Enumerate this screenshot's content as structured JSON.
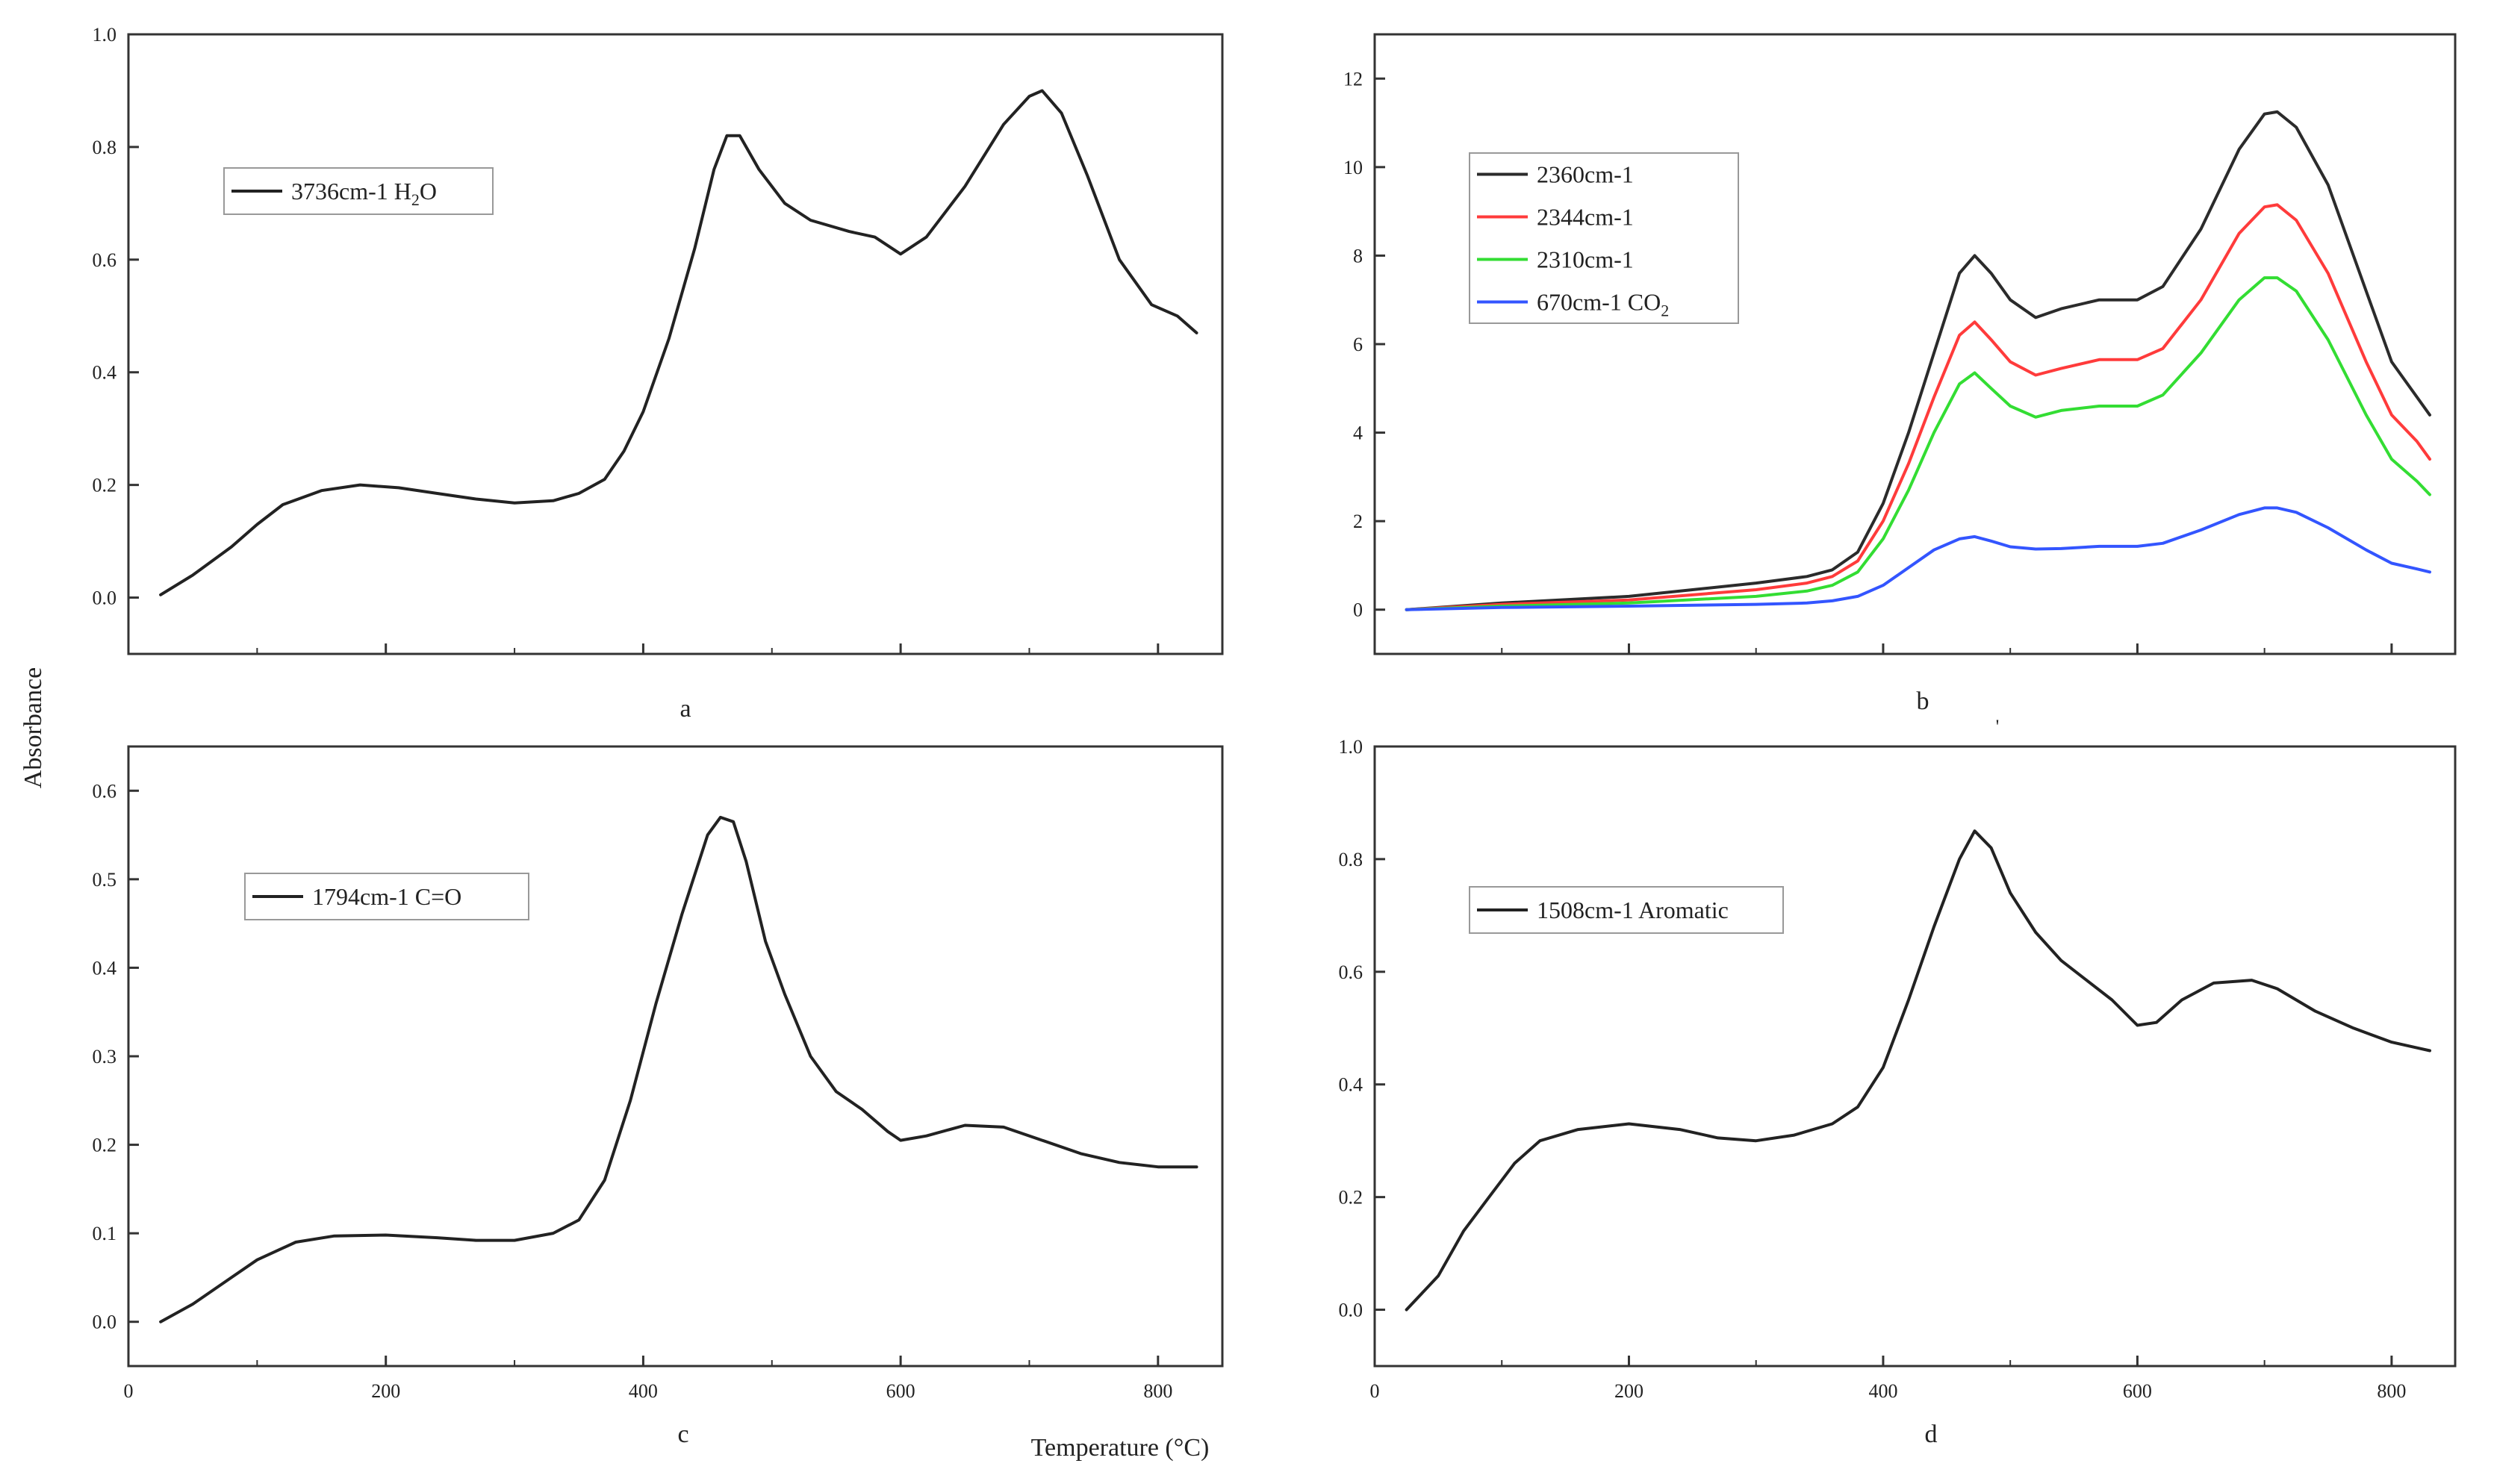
{
  "figure": {
    "ylabel": "Absorbance",
    "xlabel": "Temperature (°C)"
  },
  "chart_data": [
    {
      "panel": "a",
      "type": "line",
      "xlim": [
        0,
        850
      ],
      "ylim": [
        -0.1,
        1.0
      ],
      "xticks": [
        0,
        200,
        400,
        600,
        800
      ],
      "yticks": [
        "0.0",
        "0.2",
        "0.4",
        "0.6",
        "0.8",
        "1.0"
      ],
      "show_xtick_labels": false,
      "legend": "top-left",
      "series": [
        {
          "name": "3736cm-1  H",
          "name_sub": "2",
          "name_tail": "O",
          "color": "#222222",
          "points": [
            [
              25,
              0.005
            ],
            [
              50,
              0.04
            ],
            [
              80,
              0.09
            ],
            [
              100,
              0.13
            ],
            [
              120,
              0.165
            ],
            [
              150,
              0.19
            ],
            [
              180,
              0.2
            ],
            [
              210,
              0.195
            ],
            [
              240,
              0.185
            ],
            [
              270,
              0.175
            ],
            [
              300,
              0.168
            ],
            [
              330,
              0.172
            ],
            [
              350,
              0.185
            ],
            [
              370,
              0.21
            ],
            [
              385,
              0.26
            ],
            [
              400,
              0.33
            ],
            [
              420,
              0.46
            ],
            [
              440,
              0.62
            ],
            [
              455,
              0.76
            ],
            [
              465,
              0.82
            ],
            [
              475,
              0.82
            ],
            [
              490,
              0.76
            ],
            [
              510,
              0.7
            ],
            [
              530,
              0.67
            ],
            [
              560,
              0.65
            ],
            [
              580,
              0.64
            ],
            [
              600,
              0.61
            ],
            [
              620,
              0.64
            ],
            [
              650,
              0.73
            ],
            [
              680,
              0.84
            ],
            [
              700,
              0.89
            ],
            [
              710,
              0.9
            ],
            [
              725,
              0.86
            ],
            [
              745,
              0.75
            ],
            [
              770,
              0.6
            ],
            [
              795,
              0.52
            ],
            [
              815,
              0.5
            ],
            [
              830,
              0.47
            ]
          ]
        }
      ]
    },
    {
      "panel": "b",
      "type": "line",
      "xlim": [
        0,
        850
      ],
      "ylim": [
        -1,
        13
      ],
      "xticks": [
        0,
        200,
        400,
        600,
        800
      ],
      "yticks": [
        "0",
        "2",
        "4",
        "6",
        "8",
        "10",
        "12"
      ],
      "show_xtick_labels": false,
      "legend": "top-left",
      "series": [
        {
          "name": "2360cm-1",
          "color": "#2b2b2b",
          "points": [
            [
              25,
              0
            ],
            [
              100,
              0.15
            ],
            [
              200,
              0.3
            ],
            [
              300,
              0.6
            ],
            [
              340,
              0.75
            ],
            [
              360,
              0.9
            ],
            [
              380,
              1.3
            ],
            [
              400,
              2.4
            ],
            [
              420,
              4
            ],
            [
              440,
              5.8
            ],
            [
              460,
              7.6
            ],
            [
              472,
              8.0
            ],
            [
              485,
              7.6
            ],
            [
              500,
              7.0
            ],
            [
              520,
              6.6
            ],
            [
              540,
              6.8
            ],
            [
              570,
              7.0
            ],
            [
              600,
              7.0
            ],
            [
              620,
              7.3
            ],
            [
              650,
              8.6
            ],
            [
              680,
              10.4
            ],
            [
              700,
              11.2
            ],
            [
              710,
              11.25
            ],
            [
              725,
              10.9
            ],
            [
              750,
              9.6
            ],
            [
              780,
              7.2
            ],
            [
              800,
              5.6
            ],
            [
              820,
              4.8
            ],
            [
              830,
              4.4
            ]
          ]
        },
        {
          "name": "2344cm-1",
          "color": "#ff3b3b",
          "points": [
            [
              25,
              0
            ],
            [
              100,
              0.12
            ],
            [
              200,
              0.22
            ],
            [
              300,
              0.45
            ],
            [
              340,
              0.6
            ],
            [
              360,
              0.75
            ],
            [
              380,
              1.1
            ],
            [
              400,
              2.0
            ],
            [
              420,
              3.3
            ],
            [
              440,
              4.8
            ],
            [
              460,
              6.2
            ],
            [
              472,
              6.5
            ],
            [
              485,
              6.1
            ],
            [
              500,
              5.6
            ],
            [
              520,
              5.3
            ],
            [
              540,
              5.45
            ],
            [
              570,
              5.65
            ],
            [
              600,
              5.65
            ],
            [
              620,
              5.9
            ],
            [
              650,
              7.0
            ],
            [
              680,
              8.5
            ],
            [
              700,
              9.1
            ],
            [
              710,
              9.15
            ],
            [
              725,
              8.8
            ],
            [
              750,
              7.6
            ],
            [
              780,
              5.6
            ],
            [
              800,
              4.4
            ],
            [
              820,
              3.8
            ],
            [
              830,
              3.4
            ]
          ]
        },
        {
          "name": "2310cm-1",
          "color": "#33dd33",
          "points": [
            [
              25,
              0
            ],
            [
              100,
              0.08
            ],
            [
              200,
              0.15
            ],
            [
              300,
              0.3
            ],
            [
              340,
              0.42
            ],
            [
              360,
              0.55
            ],
            [
              380,
              0.85
            ],
            [
              400,
              1.6
            ],
            [
              420,
              2.7
            ],
            [
              440,
              4.0
            ],
            [
              460,
              5.1
            ],
            [
              472,
              5.35
            ],
            [
              485,
              5.0
            ],
            [
              500,
              4.6
            ],
            [
              520,
              4.35
            ],
            [
              540,
              4.5
            ],
            [
              570,
              4.6
            ],
            [
              600,
              4.6
            ],
            [
              620,
              4.85
            ],
            [
              650,
              5.8
            ],
            [
              680,
              7.0
            ],
            [
              700,
              7.5
            ],
            [
              710,
              7.5
            ],
            [
              725,
              7.2
            ],
            [
              750,
              6.1
            ],
            [
              780,
              4.4
            ],
            [
              800,
              3.4
            ],
            [
              820,
              2.9
            ],
            [
              830,
              2.6
            ]
          ]
        },
        {
          "name": "670cm-1   CO",
          "name_sub": "2",
          "color": "#3355ff",
          "points": [
            [
              25,
              0
            ],
            [
              100,
              0.05
            ],
            [
              200,
              0.08
            ],
            [
              300,
              0.12
            ],
            [
              340,
              0.15
            ],
            [
              360,
              0.2
            ],
            [
              380,
              0.3
            ],
            [
              400,
              0.55
            ],
            [
              420,
              0.95
            ],
            [
              440,
              1.35
            ],
            [
              460,
              1.6
            ],
            [
              472,
              1.65
            ],
            [
              485,
              1.55
            ],
            [
              500,
              1.42
            ],
            [
              520,
              1.37
            ],
            [
              540,
              1.38
            ],
            [
              570,
              1.43
            ],
            [
              600,
              1.43
            ],
            [
              620,
              1.5
            ],
            [
              650,
              1.8
            ],
            [
              680,
              2.15
            ],
            [
              700,
              2.3
            ],
            [
              710,
              2.3
            ],
            [
              725,
              2.2
            ],
            [
              750,
              1.85
            ],
            [
              780,
              1.35
            ],
            [
              800,
              1.05
            ],
            [
              820,
              0.92
            ],
            [
              830,
              0.85
            ]
          ]
        }
      ]
    },
    {
      "panel": "c",
      "type": "line",
      "xlim": [
        0,
        850
      ],
      "ylim": [
        -0.05,
        0.65
      ],
      "xticks": [
        0,
        200,
        400,
        600,
        800
      ],
      "xtick_labels": [
        "0",
        "200",
        "400",
        "600",
        "800"
      ],
      "yticks": [
        "0.0",
        "0.1",
        "0.2",
        "0.3",
        "0.4",
        "0.5",
        "0.6"
      ],
      "show_xtick_labels": true,
      "legend": "top-left",
      "series": [
        {
          "name": "1794cm-1    C=O",
          "color": "#222222",
          "points": [
            [
              25,
              0.0
            ],
            [
              50,
              0.02
            ],
            [
              80,
              0.05
            ],
            [
              100,
              0.07
            ],
            [
              130,
              0.09
            ],
            [
              160,
              0.097
            ],
            [
              200,
              0.098
            ],
            [
              240,
              0.095
            ],
            [
              270,
              0.092
            ],
            [
              300,
              0.092
            ],
            [
              330,
              0.1
            ],
            [
              350,
              0.115
            ],
            [
              370,
              0.16
            ],
            [
              390,
              0.25
            ],
            [
              410,
              0.36
            ],
            [
              430,
              0.46
            ],
            [
              450,
              0.55
            ],
            [
              460,
              0.57
            ],
            [
              470,
              0.565
            ],
            [
              480,
              0.52
            ],
            [
              495,
              0.43
            ],
            [
              510,
              0.37
            ],
            [
              530,
              0.3
            ],
            [
              550,
              0.26
            ],
            [
              570,
              0.24
            ],
            [
              590,
              0.215
            ],
            [
              600,
              0.205
            ],
            [
              620,
              0.21
            ],
            [
              650,
              0.222
            ],
            [
              680,
              0.22
            ],
            [
              710,
              0.205
            ],
            [
              740,
              0.19
            ],
            [
              770,
              0.18
            ],
            [
              800,
              0.175
            ],
            [
              830,
              0.175
            ]
          ]
        }
      ]
    },
    {
      "panel": "d",
      "type": "line",
      "xlim": [
        0,
        850
      ],
      "ylim": [
        -0.1,
        1.0
      ],
      "xticks": [
        0,
        200,
        400,
        600,
        800
      ],
      "xtick_labels": [
        "0",
        "200",
        "400",
        "600",
        "800"
      ],
      "yticks": [
        "0.0",
        "0.2",
        "0.4",
        "0.6",
        "0.8",
        "1.0"
      ],
      "show_xtick_labels": true,
      "legend": "top-left",
      "series": [
        {
          "name": "1508cm-1 Aromatic",
          "color": "#222222",
          "points": [
            [
              25,
              0.0
            ],
            [
              50,
              0.06
            ],
            [
              70,
              0.14
            ],
            [
              90,
              0.2
            ],
            [
              110,
              0.26
            ],
            [
              130,
              0.3
            ],
            [
              160,
              0.32
            ],
            [
              200,
              0.33
            ],
            [
              240,
              0.32
            ],
            [
              270,
              0.305
            ],
            [
              300,
              0.3
            ],
            [
              330,
              0.31
            ],
            [
              360,
              0.33
            ],
            [
              380,
              0.36
            ],
            [
              400,
              0.43
            ],
            [
              420,
              0.55
            ],
            [
              440,
              0.68
            ],
            [
              460,
              0.8
            ],
            [
              472,
              0.85
            ],
            [
              485,
              0.82
            ],
            [
              500,
              0.74
            ],
            [
              520,
              0.67
            ],
            [
              540,
              0.62
            ],
            [
              560,
              0.585
            ],
            [
              580,
              0.55
            ],
            [
              600,
              0.505
            ],
            [
              615,
              0.51
            ],
            [
              635,
              0.55
            ],
            [
              660,
              0.58
            ],
            [
              690,
              0.585
            ],
            [
              710,
              0.57
            ],
            [
              740,
              0.53
            ],
            [
              770,
              0.5
            ],
            [
              800,
              0.475
            ],
            [
              820,
              0.465
            ],
            [
              830,
              0.46
            ]
          ]
        }
      ]
    }
  ],
  "panel_labels": [
    "a",
    "b",
    "c",
    "d"
  ],
  "extra_mark": "'"
}
